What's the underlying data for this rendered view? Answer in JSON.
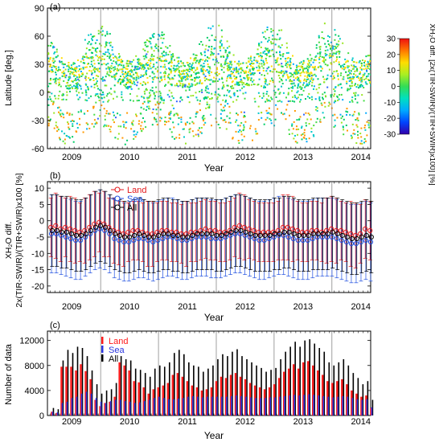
{
  "chart_data": [
    {
      "panel": "(a)",
      "type": "scatter",
      "ylabel": "Latitude [deg.]",
      "xlabel": "Year",
      "x_ticks": [
        "2009",
        "2010",
        "2011",
        "2012",
        "2013",
        "2014"
      ],
      "y_ticks": [
        90,
        60,
        30,
        0,
        -30,
        -60
      ],
      "ylim": [
        -60,
        90
      ],
      "xlim": [
        2008.58,
        2014.17
      ],
      "colorbar": {
        "label": "XH₂O diff. [2x(TIR-SWIR)/(TIR+SWIR)x100] [%]",
        "ticks": [
          30,
          20,
          10,
          0,
          -10,
          -20,
          -30
        ],
        "range": [
          -30,
          30
        ],
        "colors": [
          "#3300aa",
          "#0044ff",
          "#00aaff",
          "#00e0c0",
          "#33dd55",
          "#aaee22",
          "#ffdd00",
          "#ff7700",
          "#ee1111"
        ]
      },
      "data_colors": [
        "#00c8c8",
        "#00cc66",
        "#44dd44",
        "#99e622",
        "#ffdd00",
        "#ff9900",
        "#00aaff",
        "#3366ff"
      ]
    },
    {
      "panel": "(b)",
      "type": "line",
      "ylabel_line1": "XH₂O diff.",
      "ylabel_line2": "2x(TIR-SWIR)/(TIR+SWIR)x100 [%]",
      "xlabel": "Year",
      "x_ticks": [
        "2009",
        "2010",
        "2011",
        "2012",
        "2013",
        "2014"
      ],
      "y_ticks": [
        10,
        5,
        0,
        -5,
        -10,
        -15,
        -20
      ],
      "ylim": [
        -22,
        12
      ],
      "legend": [
        "Land",
        "Sea",
        "All"
      ],
      "series": [
        {
          "name": "Land",
          "color": "#e31a1c",
          "mean": [
            -2.0,
            -1.5,
            -2.5,
            -2.0,
            -2.5,
            -3.0,
            -3.5,
            -3.0,
            -2.0,
            -1.0,
            -0.5,
            -1.0,
            -2.0,
            -3.0,
            -3.5,
            -4.0,
            -3.5,
            -3.0,
            -3.0,
            -3.5,
            -4.0,
            -4.0,
            -3.5,
            -3.0,
            -3.0,
            -3.5,
            -3.5,
            -4.0,
            -4.0,
            -3.5,
            -3.5,
            -3.0,
            -2.5,
            -3.0,
            -3.0,
            -3.5,
            -3.5,
            -3.0,
            -2.0,
            -1.5,
            -2.0,
            -2.5,
            -3.0,
            -3.5,
            -3.5,
            -3.5,
            -3.5,
            -3.0,
            -2.0,
            -2.0,
            -2.5,
            -3.0,
            -3.5,
            -3.5,
            -3.0,
            -3.0,
            -3.5,
            -3.0,
            -2.5,
            -3.0,
            -3.0,
            -3.5,
            -4.0,
            -4.5,
            -4.0,
            -2.5,
            -3.0
          ],
          "sd": [
            9,
            10,
            10,
            9,
            10,
            10,
            9,
            10,
            10,
            10,
            9,
            10,
            9,
            10,
            10,
            10,
            9,
            9,
            9,
            9,
            10,
            10,
            9,
            9,
            9,
            9,
            9,
            9,
            10,
            9,
            9,
            9,
            9,
            9,
            9,
            9,
            9,
            9,
            9,
            10,
            10,
            9,
            9,
            9,
            9,
            9,
            9,
            9,
            10,
            10,
            10,
            9,
            9,
            9,
            9,
            9,
            9,
            10,
            10,
            10,
            9,
            9,
            10,
            10,
            9,
            9,
            9
          ]
        },
        {
          "name": "Sea",
          "color": "#1f4fe0",
          "mean": [
            -4.0,
            -4.0,
            -4.5,
            -5.0,
            -5.5,
            -6.0,
            -6.0,
            -5.0,
            -4.0,
            -3.0,
            -2.5,
            -3.0,
            -4.0,
            -5.5,
            -6.0,
            -6.5,
            -6.5,
            -6.0,
            -5.5,
            -5.5,
            -6.0,
            -6.5,
            -6.0,
            -5.5,
            -5.0,
            -5.0,
            -5.5,
            -6.0,
            -6.0,
            -5.5,
            -5.0,
            -5.0,
            -5.0,
            -5.5,
            -5.5,
            -5.5,
            -5.0,
            -4.5,
            -4.0,
            -4.0,
            -4.5,
            -5.0,
            -5.5,
            -6.0,
            -6.0,
            -5.5,
            -5.0,
            -4.5,
            -4.5,
            -5.0,
            -5.5,
            -6.0,
            -6.0,
            -6.0,
            -5.5,
            -5.0,
            -5.0,
            -5.0,
            -5.0,
            -5.5,
            -6.0,
            -6.5,
            -7.0,
            -7.0,
            -6.5,
            -6.0,
            -6.5
          ],
          "sd": [
            12,
            12,
            12,
            12,
            12,
            12,
            12,
            12,
            12,
            12,
            12,
            12,
            12,
            12,
            12,
            12,
            12,
            12,
            12,
            12,
            12,
            12,
            12,
            12,
            12,
            12,
            12,
            12,
            12,
            12,
            12,
            12,
            12,
            12,
            12,
            12,
            12,
            12,
            12,
            12,
            12,
            12,
            12,
            12,
            12,
            12,
            12,
            12,
            12,
            12,
            12,
            12,
            12,
            12,
            12,
            12,
            12,
            12,
            12,
            12,
            12,
            12,
            12,
            12,
            12,
            12,
            12
          ]
        },
        {
          "name": "All",
          "color": "#000000",
          "mean": [
            -3.0,
            -3.0,
            -3.5,
            -3.5,
            -4.0,
            -4.5,
            -4.5,
            -4.0,
            -3.0,
            -2.0,
            -1.5,
            -2.0,
            -3.0,
            -4.0,
            -4.5,
            -5.0,
            -5.0,
            -4.5,
            -4.0,
            -4.5,
            -5.0,
            -5.0,
            -4.5,
            -4.0,
            -4.0,
            -4.5,
            -4.5,
            -5.0,
            -5.0,
            -4.5,
            -4.0,
            -4.0,
            -4.0,
            -4.0,
            -4.5,
            -4.5,
            -4.0,
            -3.5,
            -3.0,
            -3.0,
            -3.5,
            -4.0,
            -4.5,
            -4.5,
            -4.5,
            -4.5,
            -4.0,
            -4.0,
            -3.5,
            -3.5,
            -4.0,
            -4.5,
            -4.5,
            -4.5,
            -4.0,
            -4.0,
            -4.0,
            -4.0,
            -3.5,
            -4.0,
            -4.5,
            -5.0,
            -5.5,
            -5.5,
            -5.0,
            -4.5,
            -5.0
          ],
          "sd": [
            11,
            11,
            11,
            11,
            11,
            11,
            11,
            11,
            11,
            11,
            11,
            11,
            11,
            11,
            11,
            11,
            11,
            11,
            11,
            11,
            11,
            11,
            11,
            11,
            11,
            11,
            11,
            11,
            11,
            11,
            11,
            11,
            11,
            11,
            11,
            11,
            11,
            11,
            11,
            11,
            11,
            11,
            11,
            11,
            11,
            11,
            11,
            11,
            11,
            11,
            11,
            11,
            11,
            11,
            11,
            11,
            11,
            11,
            11,
            11,
            11,
            11,
            11,
            11,
            11,
            11,
            11
          ]
        }
      ]
    },
    {
      "panel": "(c)",
      "type": "bar",
      "ylabel": "Number of data",
      "xlabel": "Year",
      "x_ticks": [
        "2009",
        "2010",
        "2011",
        "2012",
        "2013",
        "2014"
      ],
      "y_ticks": [
        0,
        4000,
        8000,
        12000
      ],
      "ylim": [
        0,
        13500
      ],
      "legend": [
        "Land",
        "Sea",
        "All"
      ],
      "series": [
        {
          "name": "All",
          "color": "#000000",
          "values": [
            1200,
            1000,
            8800,
            10500,
            10000,
            11000,
            10800,
            9500,
            7200,
            5000,
            3500,
            4000,
            4200,
            5200,
            9500,
            9000,
            8800,
            7500,
            7300,
            6800,
            6200,
            7500,
            8000,
            7800,
            8500,
            10000,
            10500,
            9800,
            8500,
            8000,
            7800,
            7000,
            7500,
            8000,
            9000,
            9800,
            9500,
            10200,
            10600,
            9500,
            9000,
            8500,
            8000,
            7600,
            7000,
            7300,
            7600,
            9000,
            10200,
            11000,
            11800,
            11000,
            12000,
            12200,
            11500,
            10800,
            10200,
            8500,
            8000,
            8500,
            9000,
            8000,
            6800,
            6000,
            5000,
            5500,
            2500
          ]
        },
        {
          "name": "Land",
          "color": "#ff1a1a",
          "values": [
            600,
            400,
            7800,
            7800,
            7800,
            7200,
            8200,
            7100,
            5800,
            2500,
            1500,
            2000,
            2200,
            3000,
            8500,
            8000,
            7200,
            5500,
            5300,
            4500,
            3500,
            4200,
            4500,
            4800,
            5200,
            6500,
            6800,
            6200,
            5500,
            4800,
            4500,
            4000,
            4200,
            4500,
            5500,
            6200,
            6000,
            6500,
            6800,
            6200,
            5800,
            5200,
            4800,
            4500,
            4200,
            4500,
            5000,
            6000,
            7000,
            7500,
            8200,
            7500,
            8500,
            8700,
            8000,
            7200,
            6500,
            5500,
            5200,
            5500,
            5800,
            5000,
            4000,
            3500,
            3000,
            3200,
            1200
          ]
        },
        {
          "name": "Sea",
          "color": "#2b36e0",
          "values": [
            600,
            500,
            2000,
            2200,
            2800,
            3000,
            3500,
            3800,
            3500,
            2800,
            2200,
            2000,
            2300,
            2500,
            2500,
            2300,
            2200,
            2000,
            2100,
            2300,
            2500,
            2800,
            3000,
            2800,
            2600,
            2600,
            2700,
            2800,
            3000,
            3100,
            3000,
            2900,
            3000,
            3000,
            3000,
            3000,
            3000,
            3100,
            3200,
            3100,
            3000,
            2900,
            2800,
            2800,
            2800,
            2900,
            2900,
            3000,
            3100,
            3200,
            3300,
            3200,
            3300,
            3400,
            3300,
            3200,
            3100,
            3000,
            2900,
            3000,
            3100,
            3000,
            2800,
            2600,
            2500,
            2600,
            1300
          ]
        }
      ]
    }
  ]
}
